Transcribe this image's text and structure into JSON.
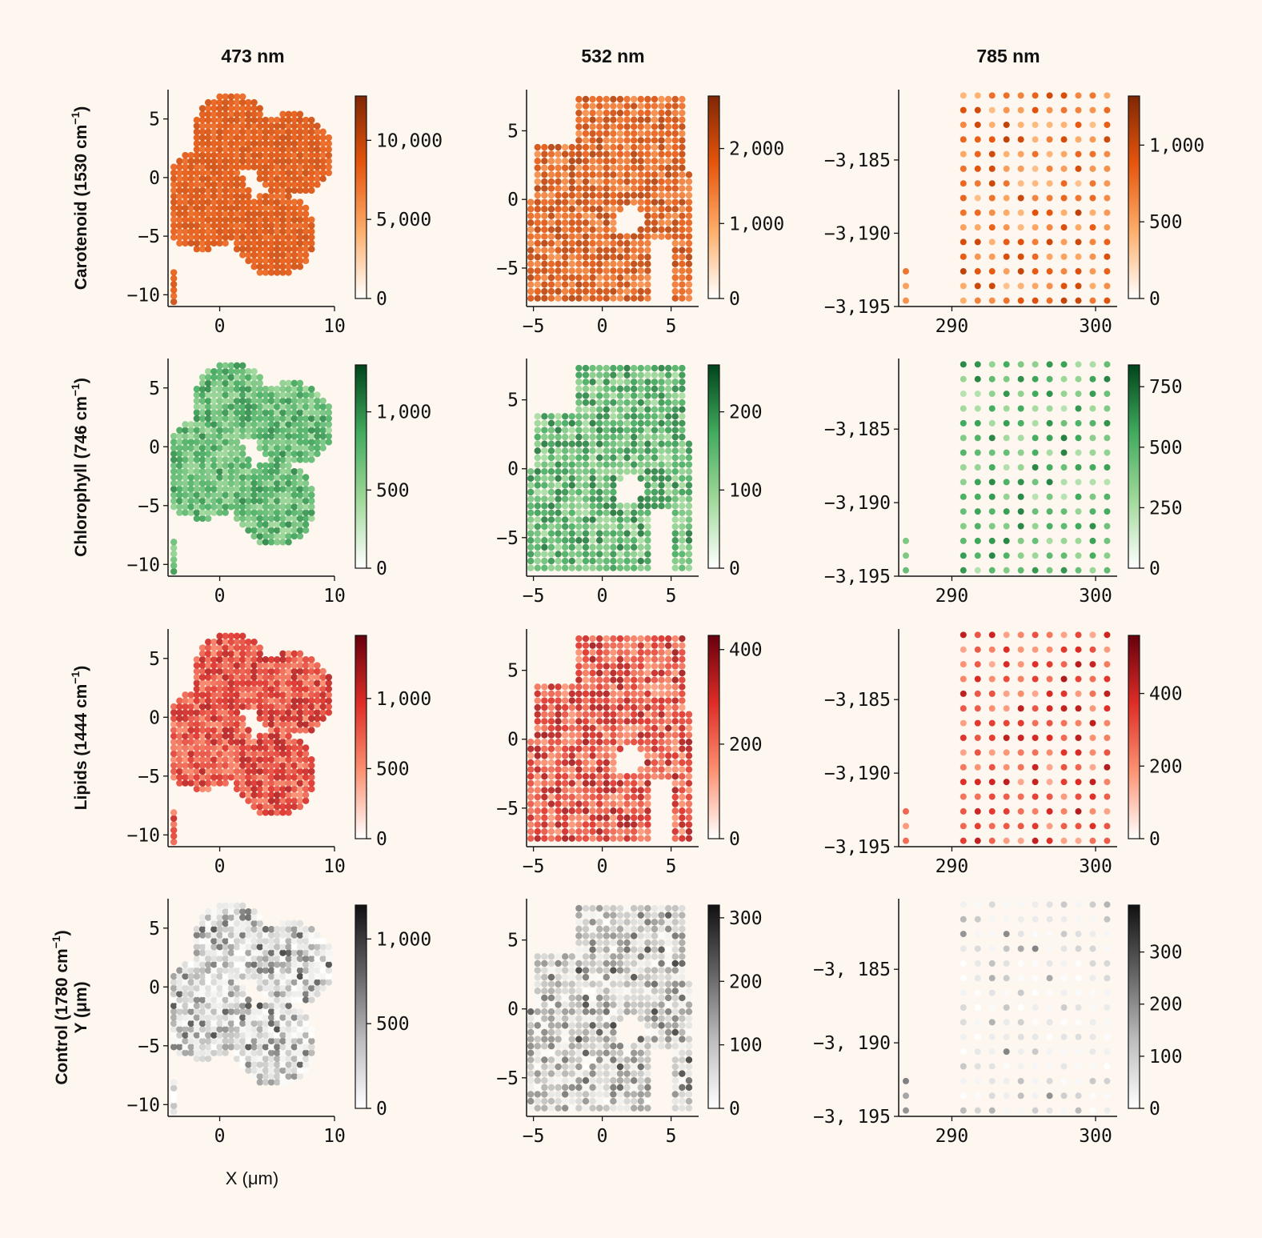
{
  "chart_data": {
    "type": "scatter",
    "description_style": "hyperspectral Raman map panels",
    "columns": [
      "473 nm",
      "532 nm",
      "785 nm"
    ],
    "rows": [
      {
        "label": "Carotenoid (1530 cm",
        "cmap": "orange",
        "colors": [
          "#ffffff",
          "#fdae6b",
          "#e6550d",
          "#7f2704"
        ]
      },
      {
        "label": "Chlorophyll (746 cm",
        "cmap": "green",
        "colors": [
          "#ffffff",
          "#a1d99b",
          "#41ab5d",
          "#00441b"
        ]
      },
      {
        "label": "Lipids (1444 cm",
        "cmap": "red",
        "colors": [
          "#ffffff",
          "#fc9272",
          "#de2d26",
          "#67000d"
        ]
      },
      {
        "label": "Control (1780 cm",
        "label2": "Y (μm)",
        "cmap": "gray",
        "colors": [
          "#ffffff",
          "#bdbdbd",
          "#636363",
          "#111111"
        ]
      }
    ],
    "x_label": "X (μm)",
    "panels": [
      {
        "row": 0,
        "col": 0,
        "xlim": [
          -4.5,
          10
        ],
        "ylim": [
          -11,
          7.5
        ],
        "xticks": [
          0,
          10
        ],
        "yticks": [
          5,
          0,
          -5,
          -10
        ],
        "ytick_labels": [
          "5",
          "0",
          "−5",
          "−10"
        ],
        "xtick_labels": [
          "0",
          "10"
        ],
        "cbar_max": 12800,
        "cbar_ticks": [
          0,
          5000,
          10000
        ],
        "cbar_labels": [
          "0",
          "5,000",
          "10,000"
        ]
      },
      {
        "row": 0,
        "col": 1,
        "xlim": [
          -5.5,
          7
        ],
        "ylim": [
          -7.8,
          8
        ],
        "xticks": [
          -5,
          0,
          5
        ],
        "yticks": [
          5,
          0,
          -5
        ],
        "ytick_labels": [
          "5",
          "0",
          "−5"
        ],
        "xtick_labels": [
          "−5",
          "0",
          "5"
        ],
        "cbar_max": 2700,
        "cbar_ticks": [
          0,
          1000,
          2000
        ],
        "cbar_labels": [
          "0",
          "1,000",
          "2,000"
        ]
      },
      {
        "row": 0,
        "col": 2,
        "xlim": [
          286.3,
          301.5
        ],
        "ylim": [
          -3195,
          -3180.2
        ],
        "xticks": [
          290,
          300
        ],
        "yticks": [
          -3185,
          -3190,
          -3195
        ],
        "ytick_labels": [
          "−3,185",
          "−3,190",
          "−3,195"
        ],
        "xtick_labels": [
          "290",
          "300"
        ],
        "cbar_max": 1320,
        "cbar_ticks": [
          0,
          500,
          1000
        ],
        "cbar_labels": [
          "0",
          "500",
          "1,000"
        ]
      },
      {
        "row": 1,
        "col": 0,
        "xlim": [
          -4.5,
          10
        ],
        "ylim": [
          -11,
          7.5
        ],
        "xticks": [
          0,
          10
        ],
        "yticks": [
          5,
          0,
          -5,
          -10
        ],
        "ytick_labels": [
          "5",
          "0",
          "−5",
          "−10"
        ],
        "xtick_labels": [
          "0",
          "10"
        ],
        "cbar_max": 1300,
        "cbar_ticks": [
          0,
          500,
          1000
        ],
        "cbar_labels": [
          "0",
          "500",
          "1,000"
        ]
      },
      {
        "row": 1,
        "col": 1,
        "xlim": [
          -5.5,
          7
        ],
        "ylim": [
          -7.8,
          8
        ],
        "xticks": [
          -5,
          0,
          5
        ],
        "yticks": [
          5,
          0,
          -5
        ],
        "ytick_labels": [
          "5",
          "0",
          "−5"
        ],
        "xtick_labels": [
          "−5",
          "0",
          "5"
        ],
        "cbar_max": 260,
        "cbar_ticks": [
          0,
          100,
          200
        ],
        "cbar_labels": [
          "0",
          "100",
          "200"
        ]
      },
      {
        "row": 1,
        "col": 2,
        "xlim": [
          286.3,
          301.5
        ],
        "ylim": [
          -3195,
          -3180.2
        ],
        "xticks": [
          290,
          300
        ],
        "yticks": [
          -3185,
          -3190,
          -3195
        ],
        "ytick_labels": [
          "−3,185",
          "−3,190",
          "−3,195"
        ],
        "xtick_labels": [
          "290",
          "300"
        ],
        "cbar_max": 840,
        "cbar_ticks": [
          0,
          250,
          500,
          750
        ],
        "cbar_labels": [
          "0",
          "250",
          "500",
          "750"
        ]
      },
      {
        "row": 2,
        "col": 0,
        "xlim": [
          -4.5,
          10
        ],
        "ylim": [
          -11,
          7.5
        ],
        "xticks": [
          0,
          10
        ],
        "yticks": [
          5,
          0,
          -5,
          -10
        ],
        "ytick_labels": [
          "5",
          "0",
          "−5",
          "−10"
        ],
        "xtick_labels": [
          "0",
          "10"
        ],
        "cbar_max": 1450,
        "cbar_ticks": [
          0,
          500,
          1000
        ],
        "cbar_labels": [
          "0",
          "500",
          "1,000"
        ]
      },
      {
        "row": 2,
        "col": 1,
        "xlim": [
          -5.5,
          7
        ],
        "ylim": [
          -7.8,
          8
        ],
        "xticks": [
          -5,
          0,
          5
        ],
        "yticks": [
          5,
          0,
          -5
        ],
        "ytick_labels": [
          "5",
          "0",
          "−5"
        ],
        "xtick_labels": [
          "−5",
          "0",
          "5"
        ],
        "cbar_max": 430,
        "cbar_ticks": [
          0,
          200,
          400
        ],
        "cbar_labels": [
          "0",
          "200",
          "400"
        ]
      },
      {
        "row": 2,
        "col": 2,
        "xlim": [
          286.3,
          301.5
        ],
        "ylim": [
          -3195,
          -3180.2
        ],
        "xticks": [
          290,
          300
        ],
        "yticks": [
          -3185,
          -3190,
          -3195
        ],
        "ytick_labels": [
          "−3,185",
          "−3,190",
          "−3,195"
        ],
        "xtick_labels": [
          "290",
          "300"
        ],
        "cbar_max": 560,
        "cbar_ticks": [
          0,
          200,
          400
        ],
        "cbar_labels": [
          "0",
          "200",
          "400"
        ]
      },
      {
        "row": 3,
        "col": 0,
        "xlim": [
          -4.5,
          10
        ],
        "ylim": [
          -11,
          7.5
        ],
        "xticks": [
          0,
          10
        ],
        "yticks": [
          5,
          0,
          -5,
          -10
        ],
        "ytick_labels": [
          "5",
          "0",
          "−5",
          "−10"
        ],
        "xtick_labels": [
          "0",
          "10"
        ],
        "cbar_max": 1200,
        "cbar_ticks": [
          0,
          500,
          1000
        ],
        "cbar_labels": [
          "0",
          "500",
          "1,000"
        ]
      },
      {
        "row": 3,
        "col": 1,
        "xlim": [
          -5.5,
          7
        ],
        "ylim": [
          -7.8,
          8
        ],
        "xticks": [
          -5,
          0,
          5
        ],
        "yticks": [
          5,
          0,
          -5
        ],
        "ytick_labels": [
          "5",
          "0",
          "−5"
        ],
        "xtick_labels": [
          "−5",
          "0",
          "5"
        ],
        "cbar_max": 320,
        "cbar_ticks": [
          0,
          100,
          200,
          300
        ],
        "cbar_labels": [
          "0",
          "100",
          "200",
          "300"
        ]
      },
      {
        "row": 3,
        "col": 2,
        "xlim": [
          286.3,
          301.5
        ],
        "ylim": [
          -3195,
          -3180.2
        ],
        "xticks": [
          290,
          300
        ],
        "yticks": [
          -3185,
          -3190,
          -3195
        ],
        "ytick_labels": [
          "−3, 185",
          "−3, 190",
          "−3, 195"
        ],
        "xtick_labels": [
          "290",
          "300"
        ],
        "cbar_max": 390,
        "cbar_ticks": [
          0,
          100,
          200,
          300
        ],
        "cbar_labels": [
          "0",
          "100",
          "200",
          "300"
        ]
      }
    ]
  }
}
